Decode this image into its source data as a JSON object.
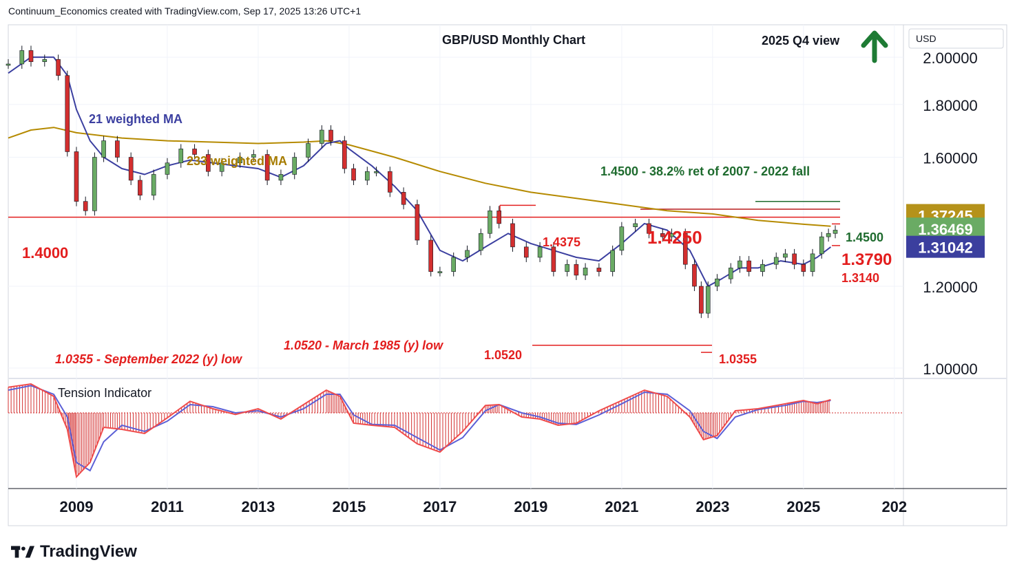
{
  "header": {
    "credit": "Continuum_Economics created with TradingView.com, Sep 17, 2025 13:26 UTC+1"
  },
  "footer": {
    "brand": "TradingView"
  },
  "price_axis": {
    "currency": "USD",
    "ticks": [
      "2.00000",
      "1.80000",
      "1.60000",
      "1.20000",
      "1.00000"
    ]
  },
  "price_badges": [
    {
      "text": "1.37245",
      "color": "#b5921a"
    },
    {
      "text": "1.36469",
      "color": "#6aab64"
    },
    {
      "text": "1.31042",
      "color": "#3b3f9e"
    }
  ],
  "time_axis": {
    "labels": [
      "2009",
      "2011",
      "2013",
      "2015",
      "2017",
      "2019",
      "2021",
      "2023",
      "2025",
      "202"
    ]
  },
  "colors": {
    "ma21": "#3b3fa0",
    "ma233": "#b58a00",
    "up": "#6aab64",
    "down": "#d32f2f",
    "red_text": "#e31e1e",
    "green_text": "#1e6b2e"
  },
  "chart_data": [
    {
      "type": "line",
      "title": "GBP/USD Monthly Chart",
      "subtitle": "2025 Q4 view",
      "outlook": "up-arrow",
      "yscale": "log",
      "ylim": [
        0.98,
        2.15
      ],
      "xlim": [
        2007.5,
        2027.2
      ],
      "series": [
        {
          "name": "21 weighted MA",
          "x": [
            2007.5,
            2008.0,
            2008.5,
            2008.8,
            2009.0,
            2009.3,
            2009.6,
            2010.0,
            2010.5,
            2011.0,
            2011.5,
            2012.0,
            2012.5,
            2013.0,
            2013.5,
            2014.0,
            2014.5,
            2014.8,
            2015.0,
            2015.5,
            2016.0,
            2016.5,
            2017.0,
            2017.5,
            2018.0,
            2018.5,
            2019.0,
            2019.5,
            2020.0,
            2020.5,
            2021.0,
            2021.5,
            2022.0,
            2022.5,
            2022.9,
            2023.2,
            2023.6,
            2024.0,
            2024.5,
            2025.0,
            2025.3,
            2025.6
          ],
          "y": [
            1.93,
            2.0,
            2.0,
            1.92,
            1.78,
            1.66,
            1.6,
            1.56,
            1.54,
            1.57,
            1.59,
            1.58,
            1.57,
            1.56,
            1.53,
            1.57,
            1.65,
            1.66,
            1.63,
            1.57,
            1.5,
            1.42,
            1.3,
            1.27,
            1.31,
            1.35,
            1.32,
            1.3,
            1.28,
            1.27,
            1.32,
            1.38,
            1.36,
            1.3,
            1.2,
            1.22,
            1.25,
            1.25,
            1.27,
            1.26,
            1.28,
            1.31
          ]
        },
        {
          "name": "233 weighted MA",
          "x": [
            2007.5,
            2008.0,
            2008.5,
            2009.0,
            2010.0,
            2011.0,
            2012.0,
            2013.0,
            2014.0,
            2014.5,
            2015.0,
            2016.0,
            2017.0,
            2018.0,
            2019.0,
            2020.0,
            2021.0,
            2022.0,
            2023.0,
            2024.0,
            2025.0,
            2025.6
          ],
          "y": [
            1.67,
            1.7,
            1.71,
            1.69,
            1.67,
            1.66,
            1.655,
            1.65,
            1.655,
            1.66,
            1.645,
            1.6,
            1.55,
            1.51,
            1.48,
            1.46,
            1.44,
            1.42,
            1.41,
            1.39,
            1.378,
            1.372
          ]
        },
        {
          "name": "GBP/USD",
          "x": [
            2007.5,
            2007.8,
            2008.0,
            2008.3,
            2008.6,
            2008.8,
            2009.0,
            2009.2,
            2009.4,
            2009.6,
            2009.9,
            2010.2,
            2010.4,
            2010.7,
            2011.0,
            2011.3,
            2011.6,
            2011.9,
            2012.2,
            2012.6,
            2012.9,
            2013.2,
            2013.5,
            2013.8,
            2014.1,
            2014.4,
            2014.6,
            2014.9,
            2015.1,
            2015.4,
            2015.6,
            2015.9,
            2016.2,
            2016.5,
            2016.8,
            2017.0,
            2017.3,
            2017.6,
            2017.9,
            2018.1,
            2018.3,
            2018.6,
            2018.9,
            2019.2,
            2019.5,
            2019.8,
            2020.0,
            2020.2,
            2020.5,
            2020.8,
            2021.0,
            2021.3,
            2021.6,
            2021.9,
            2022.1,
            2022.4,
            2022.6,
            2022.75,
            2022.9,
            2023.1,
            2023.4,
            2023.6,
            2023.8,
            2024.1,
            2024.4,
            2024.6,
            2024.8,
            2025.0,
            2025.2,
            2025.4,
            2025.55,
            2025.7
          ],
          "y": [
            1.97,
            2.03,
            1.98,
            1.99,
            1.92,
            1.62,
            1.45,
            1.42,
            1.6,
            1.66,
            1.6,
            1.52,
            1.47,
            1.54,
            1.58,
            1.63,
            1.61,
            1.55,
            1.58,
            1.6,
            1.61,
            1.52,
            1.54,
            1.6,
            1.65,
            1.7,
            1.66,
            1.56,
            1.52,
            1.55,
            1.55,
            1.48,
            1.44,
            1.33,
            1.24,
            1.24,
            1.28,
            1.3,
            1.35,
            1.42,
            1.38,
            1.31,
            1.28,
            1.31,
            1.24,
            1.26,
            1.23,
            1.25,
            1.24,
            1.3,
            1.37,
            1.38,
            1.35,
            1.34,
            1.35,
            1.26,
            1.2,
            1.13,
            1.2,
            1.22,
            1.25,
            1.27,
            1.24,
            1.26,
            1.28,
            1.29,
            1.26,
            1.24,
            1.29,
            1.34,
            1.35,
            1.36
          ]
        }
      ],
      "horizontal_lines": [
        {
          "value": 1.4,
          "label": "1.4000"
        },
        {
          "value": 1.425,
          "label": "1.4250"
        },
        {
          "value": 1.45,
          "label": "1.4500"
        },
        {
          "value": 1.4375,
          "label": "1.4375"
        },
        {
          "value": 1.052,
          "label": "1.0520"
        },
        {
          "value": 1.0355,
          "label": "1.0355"
        }
      ],
      "annotations": [
        {
          "text": "21 weighted MA"
        },
        {
          "text": "233 weighted MA"
        },
        {
          "text": "1.4500 - 38.2% ret of 2007 - 2022 fall"
        },
        {
          "text": "1.3790"
        },
        {
          "text": "1.3140"
        },
        {
          "text": "1.0520 - March 1985 (y) low"
        },
        {
          "text": "1.0355 - September 2022 (y) low"
        }
      ]
    },
    {
      "type": "line",
      "title": "Tension Indicator",
      "series": [
        {
          "name": "fast",
          "x": [
            2007.5,
            2008.0,
            2008.5,
            2008.8,
            2009.0,
            2009.3,
            2009.6,
            2010.0,
            2010.5,
            2011.0,
            2011.5,
            2012.0,
            2012.5,
            2013.0,
            2013.5,
            2014.0,
            2014.5,
            2014.8,
            2015.1,
            2015.5,
            2016.0,
            2016.5,
            2017.0,
            2017.5,
            2018.0,
            2018.3,
            2018.8,
            2019.2,
            2019.6,
            2020.0,
            2020.5,
            2021.0,
            2021.5,
            2022.0,
            2022.5,
            2022.8,
            2023.1,
            2023.5,
            2024.0,
            2024.6,
            2025.0,
            2025.3,
            2025.6
          ],
          "y": [
            0.62,
            0.7,
            0.4,
            -0.4,
            -1.55,
            -1.2,
            -0.35,
            -0.4,
            -0.5,
            -0.12,
            0.28,
            0.1,
            -0.04,
            0.1,
            -0.15,
            0.2,
            0.55,
            0.4,
            -0.25,
            -0.3,
            -0.35,
            -0.75,
            -0.95,
            -0.45,
            0.18,
            0.2,
            -0.1,
            -0.15,
            -0.3,
            -0.25,
            0.05,
            0.3,
            0.55,
            0.4,
            -0.1,
            -0.65,
            -0.55,
            0.05,
            0.1,
            0.22,
            0.3,
            0.22,
            0.32
          ]
        },
        {
          "name": "slow",
          "x": [
            2007.5,
            2008.0,
            2008.5,
            2008.8,
            2009.0,
            2009.3,
            2009.6,
            2010.0,
            2010.5,
            2011.0,
            2011.5,
            2012.0,
            2012.5,
            2013.0,
            2013.5,
            2014.0,
            2014.5,
            2014.8,
            2015.1,
            2015.5,
            2016.0,
            2016.5,
            2017.0,
            2017.5,
            2018.0,
            2018.3,
            2018.8,
            2019.2,
            2019.6,
            2020.0,
            2020.5,
            2021.0,
            2021.5,
            2022.0,
            2022.5,
            2022.8,
            2023.1,
            2023.5,
            2024.0,
            2024.6,
            2025.0,
            2025.3,
            2025.6
          ],
          "y": [
            0.55,
            0.66,
            0.45,
            -0.1,
            -1.2,
            -1.4,
            -0.7,
            -0.3,
            -0.45,
            -0.2,
            0.2,
            0.15,
            0.0,
            0.05,
            -0.1,
            0.1,
            0.45,
            0.45,
            -0.05,
            -0.28,
            -0.3,
            -0.6,
            -0.9,
            -0.6,
            0.05,
            0.2,
            0.0,
            -0.1,
            -0.25,
            -0.28,
            -0.05,
            0.22,
            0.5,
            0.45,
            0.05,
            -0.45,
            -0.62,
            -0.1,
            0.08,
            0.18,
            0.28,
            0.25,
            0.3
          ]
        }
      ]
    }
  ]
}
